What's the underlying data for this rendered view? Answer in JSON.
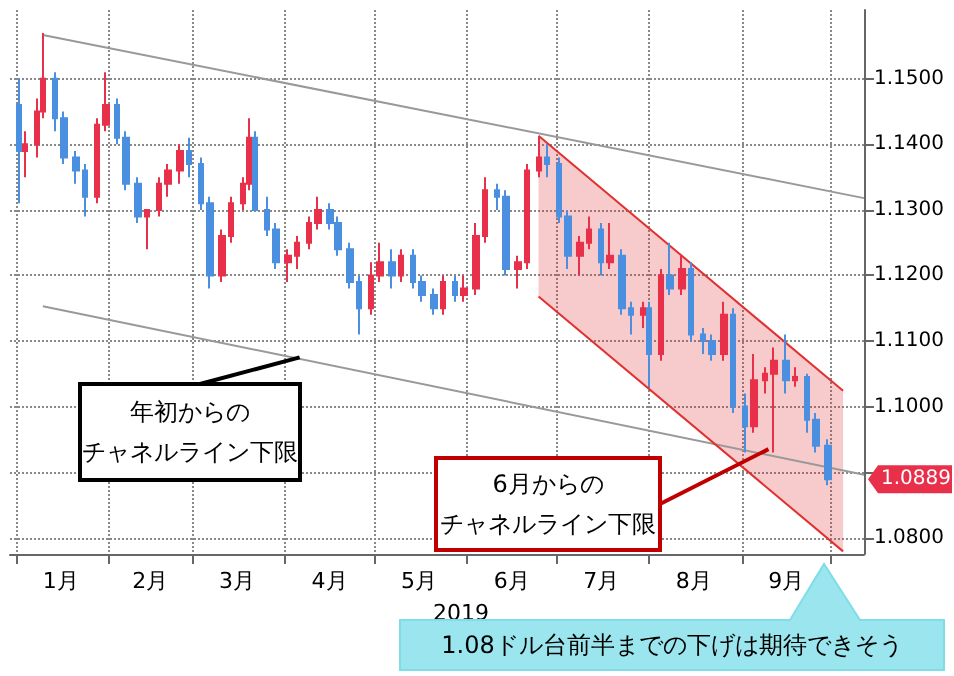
{
  "chart_data": {
    "type": "candlestick",
    "x": [
      "2019-01-02",
      "2019-01-04",
      "2019-01-08",
      "2019-01-10",
      "2019-01-14",
      "2019-01-17",
      "2019-01-21",
      "2019-01-24",
      "2019-01-28",
      "2019-01-31",
      "2019-02-04",
      "2019-02-07",
      "2019-02-11",
      "2019-02-14",
      "2019-02-18",
      "2019-02-21",
      "2019-02-25",
      "2019-02-28",
      "2019-03-04",
      "2019-03-07",
      "2019-03-11",
      "2019-03-14",
      "2019-03-18",
      "2019-03-20",
      "2019-03-22",
      "2019-03-26",
      "2019-03-29",
      "2019-04-02",
      "2019-04-05",
      "2019-04-09",
      "2019-04-12",
      "2019-04-16",
      "2019-04-19",
      "2019-04-23",
      "2019-04-26",
      "2019-04-30",
      "2019-05-03",
      "2019-05-07",
      "2019-05-10",
      "2019-05-14",
      "2019-05-17",
      "2019-05-21",
      "2019-05-24",
      "2019-05-28",
      "2019-05-31",
      "2019-06-04",
      "2019-06-07",
      "2019-06-11",
      "2019-06-14",
      "2019-06-18",
      "2019-06-21",
      "2019-06-25",
      "2019-06-28",
      "2019-07-02",
      "2019-07-05",
      "2019-07-09",
      "2019-07-12",
      "2019-07-16",
      "2019-07-19",
      "2019-07-23",
      "2019-07-26",
      "2019-07-30",
      "2019-08-01",
      "2019-08-05",
      "2019-08-08",
      "2019-08-12",
      "2019-08-15",
      "2019-08-19",
      "2019-08-22",
      "2019-08-26",
      "2019-08-29",
      "2019-09-02",
      "2019-09-05",
      "2019-09-09",
      "2019-09-12",
      "2019-09-16",
      "2019-09-19",
      "2019-09-23",
      "2019-09-26",
      "2019-09-30"
    ],
    "ohlc": [
      [
        1.146,
        1.15,
        1.131,
        1.139
      ],
      [
        1.139,
        1.142,
        1.135,
        1.14
      ],
      [
        1.14,
        1.147,
        1.138,
        1.145
      ],
      [
        1.145,
        1.157,
        1.144,
        1.15
      ],
      [
        1.15,
        1.151,
        1.142,
        1.144
      ],
      [
        1.144,
        1.145,
        1.137,
        1.138
      ],
      [
        1.138,
        1.139,
        1.134,
        1.136
      ],
      [
        1.136,
        1.137,
        1.129,
        1.132
      ],
      [
        1.132,
        1.144,
        1.131,
        1.143
      ],
      [
        1.143,
        1.151,
        1.142,
        1.146
      ],
      [
        1.146,
        1.147,
        1.14,
        1.141
      ],
      [
        1.141,
        1.142,
        1.133,
        1.134
      ],
      [
        1.134,
        1.135,
        1.128,
        1.129
      ],
      [
        1.129,
        1.13,
        1.124,
        1.13
      ],
      [
        1.13,
        1.135,
        1.129,
        1.134
      ],
      [
        1.134,
        1.137,
        1.132,
        1.136
      ],
      [
        1.136,
        1.14,
        1.134,
        1.139
      ],
      [
        1.139,
        1.141,
        1.135,
        1.137
      ],
      [
        1.137,
        1.138,
        1.13,
        1.131
      ],
      [
        1.131,
        1.132,
        1.118,
        1.12
      ],
      [
        1.12,
        1.127,
        1.119,
        1.126
      ],
      [
        1.126,
        1.132,
        1.125,
        1.131
      ],
      [
        1.131,
        1.135,
        1.13,
        1.134
      ],
      [
        1.134,
        1.144,
        1.133,
        1.141
      ],
      [
        1.141,
        1.142,
        1.13,
        1.13
      ],
      [
        1.13,
        1.132,
        1.126,
        1.127
      ],
      [
        1.127,
        1.128,
        1.121,
        1.122
      ],
      [
        1.122,
        1.124,
        1.119,
        1.123
      ],
      [
        1.123,
        1.126,
        1.121,
        1.125
      ],
      [
        1.125,
        1.129,
        1.124,
        1.128
      ],
      [
        1.128,
        1.132,
        1.127,
        1.13
      ],
      [
        1.13,
        1.131,
        1.127,
        1.128
      ],
      [
        1.128,
        1.129,
        1.123,
        1.124
      ],
      [
        1.124,
        1.125,
        1.118,
        1.119
      ],
      [
        1.119,
        1.12,
        1.111,
        1.115
      ],
      [
        1.115,
        1.122,
        1.114,
        1.12
      ],
      [
        1.12,
        1.125,
        1.119,
        1.122
      ],
      [
        1.122,
        1.124,
        1.118,
        1.12
      ],
      [
        1.12,
        1.124,
        1.119,
        1.123
      ],
      [
        1.123,
        1.124,
        1.118,
        1.119
      ],
      [
        1.119,
        1.12,
        1.116,
        1.117
      ],
      [
        1.117,
        1.118,
        1.114,
        1.115
      ],
      [
        1.115,
        1.12,
        1.114,
        1.119
      ],
      [
        1.119,
        1.12,
        1.116,
        1.117
      ],
      [
        1.117,
        1.12,
        1.116,
        1.118
      ],
      [
        1.118,
        1.128,
        1.117,
        1.126
      ],
      [
        1.126,
        1.135,
        1.125,
        1.133
      ],
      [
        1.133,
        1.134,
        1.13,
        1.132
      ],
      [
        1.132,
        1.133,
        1.12,
        1.121
      ],
      [
        1.121,
        1.123,
        1.118,
        1.122
      ],
      [
        1.122,
        1.137,
        1.121,
        1.136
      ],
      [
        1.136,
        1.1412,
        1.135,
        1.138
      ],
      [
        1.138,
        1.14,
        1.135,
        1.137
      ],
      [
        1.137,
        1.138,
        1.128,
        1.129
      ],
      [
        1.129,
        1.13,
        1.121,
        1.123
      ],
      [
        1.123,
        1.126,
        1.12,
        1.125
      ],
      [
        1.125,
        1.129,
        1.124,
        1.127
      ],
      [
        1.127,
        1.128,
        1.12,
        1.122
      ],
      [
        1.122,
        1.128,
        1.121,
        1.123
      ],
      [
        1.123,
        1.124,
        1.114,
        1.115
      ],
      [
        1.115,
        1.116,
        1.111,
        1.114
      ],
      [
        1.114,
        1.116,
        1.112,
        1.115
      ],
      [
        1.115,
        1.116,
        1.103,
        1.108
      ],
      [
        1.108,
        1.121,
        1.107,
        1.12
      ],
      [
        1.12,
        1.125,
        1.117,
        1.118
      ],
      [
        1.118,
        1.123,
        1.117,
        1.121
      ],
      [
        1.121,
        1.122,
        1.11,
        1.111
      ],
      [
        1.111,
        1.112,
        1.108,
        1.11
      ],
      [
        1.11,
        1.111,
        1.107,
        1.108
      ],
      [
        1.108,
        1.116,
        1.107,
        1.114
      ],
      [
        1.114,
        1.115,
        1.099,
        1.1
      ],
      [
        1.1,
        1.102,
        1.093,
        1.097
      ],
      [
        1.097,
        1.108,
        1.096,
        1.104
      ],
      [
        1.104,
        1.106,
        1.102,
        1.105
      ],
      [
        1.105,
        1.109,
        1.093,
        1.107
      ],
      [
        1.107,
        1.111,
        1.102,
        1.104
      ],
      [
        1.104,
        1.106,
        1.103,
        1.1045
      ],
      [
        1.1045,
        1.105,
        1.096,
        1.098
      ],
      [
        1.098,
        1.099,
        1.093,
        1.094
      ],
      [
        1.094,
        1.095,
        1.088,
        1.0889
      ]
    ],
    "colors": [
      "#4a8fe0",
      "#e8304a",
      "#e8304a",
      "#e8304a",
      "#4a8fe0",
      "#4a8fe0",
      "#4a8fe0",
      "#4a8fe0",
      "#e8304a",
      "#e8304a",
      "#4a8fe0",
      "#4a8fe0",
      "#4a8fe0",
      "#e8304a",
      "#e8304a",
      "#e8304a",
      "#e8304a",
      "#4a8fe0",
      "#4a8fe0",
      "#4a8fe0",
      "#e8304a",
      "#e8304a",
      "#e8304a",
      "#e8304a",
      "#4a8fe0",
      "#4a8fe0",
      "#4a8fe0",
      "#e8304a",
      "#e8304a",
      "#e8304a",
      "#e8304a",
      "#4a8fe0",
      "#4a8fe0",
      "#4a8fe0",
      "#4a8fe0",
      "#e8304a",
      "#e8304a",
      "#4a8fe0",
      "#e8304a",
      "#4a8fe0",
      "#4a8fe0",
      "#4a8fe0",
      "#e8304a",
      "#4a8fe0",
      "#e8304a",
      "#e8304a",
      "#e8304a",
      "#4a8fe0",
      "#4a8fe0",
      "#e8304a",
      "#e8304a",
      "#e8304a",
      "#4a8fe0",
      "#4a8fe0",
      "#4a8fe0",
      "#e8304a",
      "#e8304a",
      "#4a8fe0",
      "#e8304a",
      "#4a8fe0",
      "#4a8fe0",
      "#e8304a",
      "#4a8fe0",
      "#e8304a",
      "#4a8fe0",
      "#e8304a",
      "#4a8fe0",
      "#4a8fe0",
      "#4a8fe0",
      "#e8304a",
      "#4a8fe0",
      "#4a8fe0",
      "#e8304a",
      "#e8304a",
      "#e8304a",
      "#4a8fe0",
      "#e8304a",
      "#4a8fe0",
      "#4a8fe0",
      "#4a8fe0"
    ],
    "series": [
      {
        "type": "line",
        "color": "#999999",
        "x": [
          "2019-01-10",
          "2019-10-12"
        ],
        "values": [
          1.1567,
          1.1318
        ]
      },
      {
        "type": "line",
        "color": "#999999",
        "x": [
          "2019-01-10",
          "2019-10-12"
        ],
        "values": [
          1.1153,
          1.0896
        ]
      },
      {
        "type": "line",
        "color": "#e03030",
        "x": [
          "2019-06-25",
          "2019-10-05"
        ],
        "values": [
          1.1413,
          1.1024
        ]
      },
      {
        "type": "line",
        "color": "#e03030",
        "x": [
          "2019-06-25",
          "2019-10-05"
        ],
        "values": [
          1.1168,
          1.0779
        ],
        "lower": [
          1.1168,
          1.0779
        ],
        "upper": [
          1.1413,
          1.1024
        ]
      }
    ],
    "xlim": [
      "2018-12-30",
      "2019-10-12"
    ],
    "xticks": [
      {
        "value": "2019-01-01",
        "label": null
      },
      {
        "value": "2019-01-16",
        "label": "1月"
      },
      {
        "value": "2019-02-01",
        "label": null
      },
      {
        "value": "2019-02-15",
        "label": "2月"
      },
      {
        "value": "2019-03-01",
        "label": null
      },
      {
        "value": "2019-03-16",
        "label": "3月"
      },
      {
        "value": "2019-04-01",
        "label": null
      },
      {
        "value": "2019-04-16",
        "label": "4月"
      },
      {
        "value": "2019-05-01",
        "label": null
      },
      {
        "value": "2019-05-16",
        "label": "5月"
      },
      {
        "value": "2019-06-01",
        "label": null
      },
      {
        "value": "2019-06-16",
        "label": "6月"
      },
      {
        "value": "2019-07-01",
        "label": null
      },
      {
        "value": "2019-07-16",
        "label": "7月"
      },
      {
        "value": "2019-08-01",
        "label": null
      },
      {
        "value": "2019-08-16",
        "label": "8月"
      },
      {
        "value": "2019-09-01",
        "label": null
      },
      {
        "value": "2019-09-16",
        "label": "9月"
      },
      {
        "value": "2019-10-01",
        "label": null
      }
    ],
    "ylim": [
      1.0775,
      1.1605
    ],
    "yticks": [
      {
        "value": 1.08,
        "label": "1.0800"
      },
      {
        "value": 1.09,
        "label": null
      },
      {
        "value": 1.1,
        "label": "1.1000"
      },
      {
        "value": 1.11,
        "label": "1.1100"
      },
      {
        "value": 1.12,
        "label": "1.1200"
      },
      {
        "value": 1.13,
        "label": "1.1300"
      },
      {
        "value": 1.14,
        "label": "1.1400"
      },
      {
        "value": 1.15,
        "label": "1.1500"
      }
    ],
    "grid": true,
    "annotations": [
      {
        "text": "1.0889",
        "x": "2019-09-30",
        "y": 1.0889
      },
      {
        "text": "年初からの",
        "x": "2019-04-06",
        "y": 1.1075
      },
      "チャネルライン下限",
      "6月からの",
      {
        "text": "チャネルライン下限",
        "x": "2019-09-10",
        "y": 1.0935
      },
      "1.08ドル台前半までの下げは期待できそう"
    ],
    "xlabel": "2019"
  }
}
